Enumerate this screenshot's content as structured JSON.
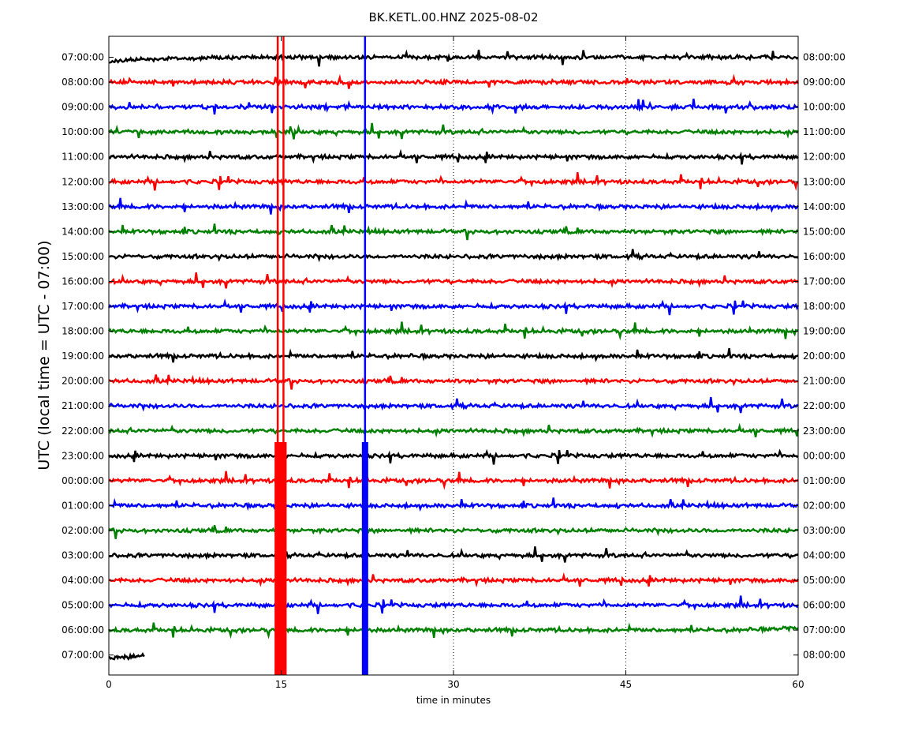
{
  "chart_data": {
    "type": "line",
    "title": "BK.KETL.00.HNZ 2025-08-02",
    "xlabel": "time in minutes",
    "ylabel": "UTC (local time = UTC - 07:00)",
    "xlim": [
      0,
      60
    ],
    "x_ticks": [
      0,
      15,
      30,
      45,
      60
    ],
    "grid_x": [
      30,
      45
    ],
    "grid_style": "dotted vertical",
    "colors": [
      "#000000",
      "#ff0000",
      "#0000ff",
      "#008000"
    ],
    "rows": [
      {
        "left": "07:00:00",
        "right": "08:00:00"
      },
      {
        "left": "08:00:00",
        "right": "09:00:00"
      },
      {
        "left": "09:00:00",
        "right": "10:00:00"
      },
      {
        "left": "10:00:00",
        "right": "11:00:00"
      },
      {
        "left": "11:00:00",
        "right": "12:00:00"
      },
      {
        "left": "12:00:00",
        "right": "13:00:00"
      },
      {
        "left": "13:00:00",
        "right": "14:00:00"
      },
      {
        "left": "14:00:00",
        "right": "15:00:00"
      },
      {
        "left": "15:00:00",
        "right": "16:00:00"
      },
      {
        "left": "16:00:00",
        "right": "17:00:00"
      },
      {
        "left": "17:00:00",
        "right": "18:00:00"
      },
      {
        "left": "18:00:00",
        "right": "19:00:00"
      },
      {
        "left": "19:00:00",
        "right": "20:00:00"
      },
      {
        "left": "20:00:00",
        "right": "21:00:00"
      },
      {
        "left": "21:00:00",
        "right": "22:00:00"
      },
      {
        "left": "22:00:00",
        "right": "23:00:00"
      },
      {
        "left": "23:00:00",
        "right": "00:00:00"
      },
      {
        "left": "00:00:00",
        "right": "01:00:00"
      },
      {
        "left": "01:00:00",
        "right": "02:00:00"
      },
      {
        "left": "02:00:00",
        "right": "03:00:00"
      },
      {
        "left": "03:00:00",
        "right": "04:00:00"
      },
      {
        "left": "04:00:00",
        "right": "05:00:00"
      },
      {
        "left": "05:00:00",
        "right": "06:00:00"
      },
      {
        "left": "06:00:00",
        "right": "07:00:00"
      },
      {
        "left": "07:00:00",
        "right": "08:00:00"
      }
    ],
    "events": [
      {
        "name": "red earthquake arrivals",
        "color": "#ff0000",
        "x": [
          14.7,
          15.2
        ]
      },
      {
        "name": "blue earthquake arrival",
        "color": "#0000ff",
        "x": [
          22.3
        ]
      }
    ],
    "last_row_end_minute": 3.1
  }
}
